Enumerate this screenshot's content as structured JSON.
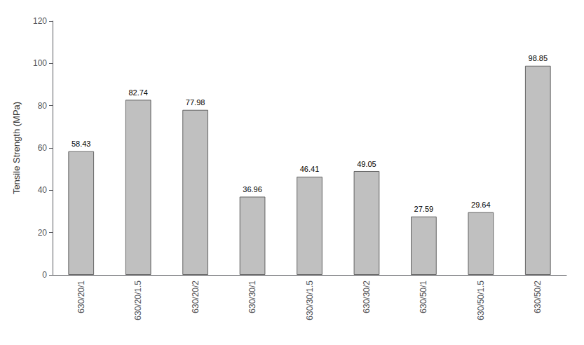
{
  "chart_data": {
    "type": "bar",
    "categories": [
      "630/20/1",
      "630/20/1.5",
      "630/20/2",
      "630/30/1",
      "630/30/1.5",
      "630/30/2",
      "630/50/1",
      "630/50/1.5",
      "630/50/2"
    ],
    "values": [
      58.43,
      82.74,
      77.98,
      36.96,
      46.41,
      49.05,
      27.59,
      29.64,
      98.85
    ],
    "color": "#c0c0c0",
    "ylabel": "Tensile Strength (MPa)",
    "ylim": [
      0,
      120
    ],
    "yticks": [
      0,
      20,
      40,
      60,
      80,
      100,
      120
    ],
    "grid": false,
    "data_labels": true
  }
}
